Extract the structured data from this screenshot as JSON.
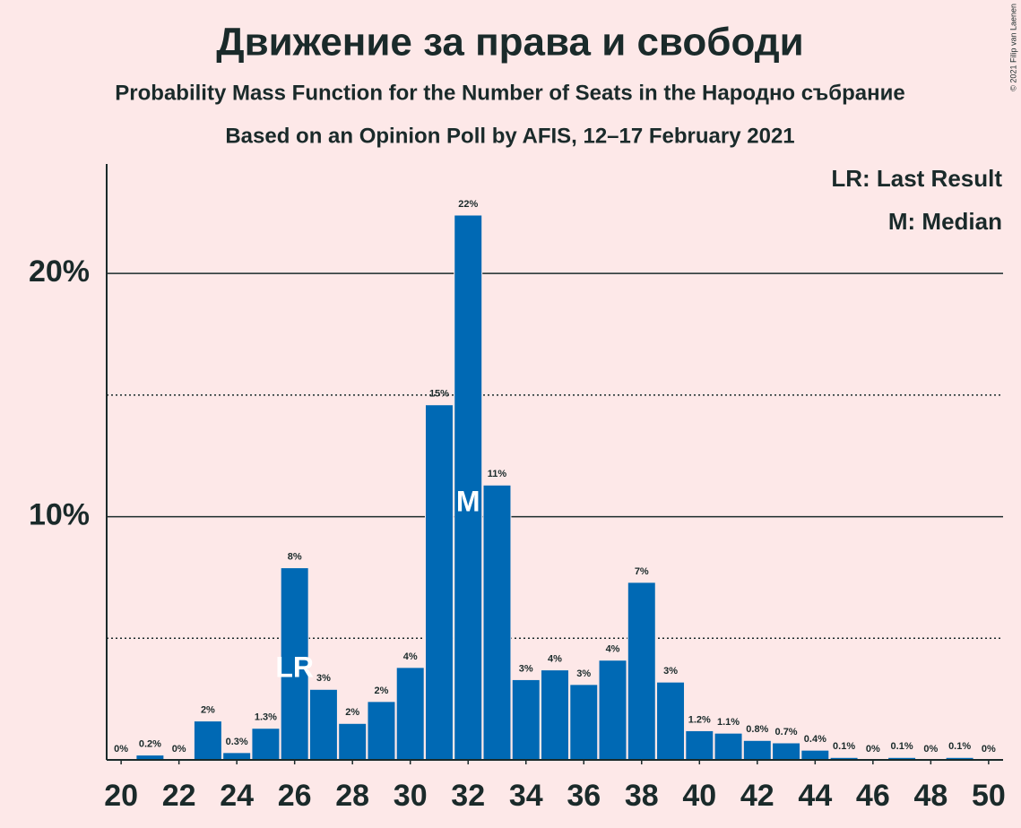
{
  "chart_data": {
    "type": "bar",
    "title": "Движение за права и свободи",
    "subtitle": "Probability Mass Function for the Number of Seats in the Народно събрание",
    "subtitle2": "Based on an Opinion Poll by AFIS, 12–17 February 2021",
    "credit": "© 2021 Filip van Laenen",
    "color": "#0069b4",
    "x": [
      20,
      21,
      22,
      23,
      24,
      25,
      26,
      27,
      28,
      29,
      30,
      31,
      32,
      33,
      34,
      35,
      36,
      37,
      38,
      39,
      40,
      41,
      42,
      43,
      44,
      45,
      46,
      47,
      48,
      49,
      50
    ],
    "values": [
      0,
      0.2,
      0,
      1.6,
      0.3,
      1.3,
      7.9,
      2.9,
      1.5,
      2.4,
      3.8,
      14.6,
      22.4,
      11.3,
      3.3,
      3.7,
      3.1,
      4.1,
      7.3,
      3.2,
      1.2,
      1.1,
      0.8,
      0.7,
      0.4,
      0.1,
      0,
      0.1,
      0,
      0.1,
      0
    ],
    "value_labels": [
      "0%",
      "0.2%",
      "0%",
      "2%",
      "0.3%",
      "1.3%",
      "8%",
      "3%",
      "2%",
      "2%",
      "4%",
      "15%",
      "22%",
      "11%",
      "3%",
      "4%",
      "3%",
      "4%",
      "7%",
      "3%",
      "1.2%",
      "1.1%",
      "0.8%",
      "0.7%",
      "0.4%",
      "0.1%",
      "0%",
      "0.1%",
      "0%",
      "0.1%",
      "0%"
    ],
    "xlim": [
      19.5,
      50.5
    ],
    "xticks": [
      20,
      22,
      24,
      26,
      28,
      30,
      32,
      34,
      36,
      38,
      40,
      42,
      44,
      46,
      48,
      50
    ],
    "ylim": [
      0,
      24.5
    ],
    "yticks": [
      {
        "value": 10,
        "label": "10%"
      },
      {
        "value": 20,
        "label": "20%"
      }
    ],
    "minor_grid": [
      5,
      15
    ],
    "markers": [
      {
        "x": 26,
        "label": "LR"
      },
      {
        "x": 32,
        "label": "M"
      }
    ],
    "legend": [
      "LR: Last Result",
      "M: Median"
    ]
  }
}
